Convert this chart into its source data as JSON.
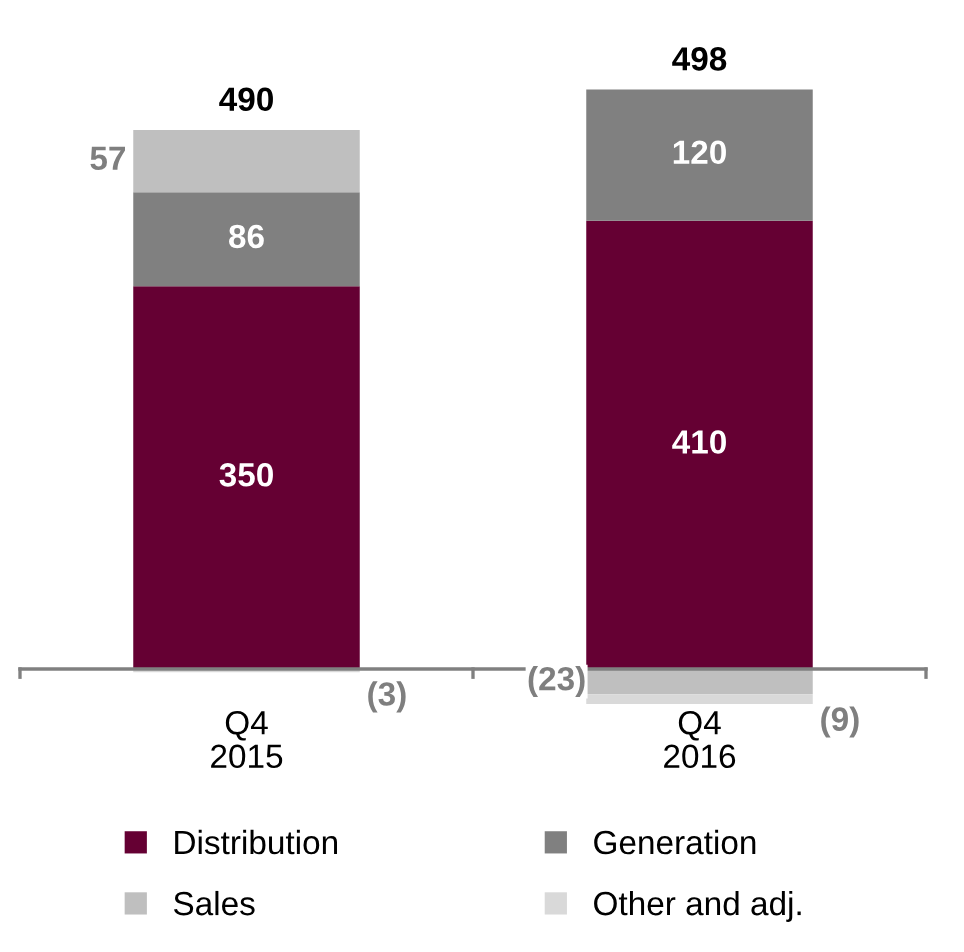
{
  "chart_data": {
    "type": "bar",
    "stacked": true,
    "categories": [
      "Q4\n2015",
      "Q4\n2016"
    ],
    "series": [
      {
        "name": "Distribution",
        "color": "#650033",
        "values": [
          350,
          410
        ],
        "value_labels": [
          "350",
          "410"
        ]
      },
      {
        "name": "Generation",
        "color": "#808080",
        "values": [
          86,
          120
        ],
        "value_labels": [
          "86",
          "120"
        ]
      },
      {
        "name": "Sales",
        "color": "#bfbfbf",
        "values": [
          57,
          -23
        ],
        "value_labels": [
          "57",
          "(23)"
        ]
      },
      {
        "name": "Other and adj.",
        "color": "#d9d9d9",
        "values": [
          -3,
          -9
        ],
        "value_labels": [
          "(3)",
          "(9)"
        ]
      }
    ],
    "totals": [
      "490",
      "498"
    ],
    "legend": "bottom"
  }
}
